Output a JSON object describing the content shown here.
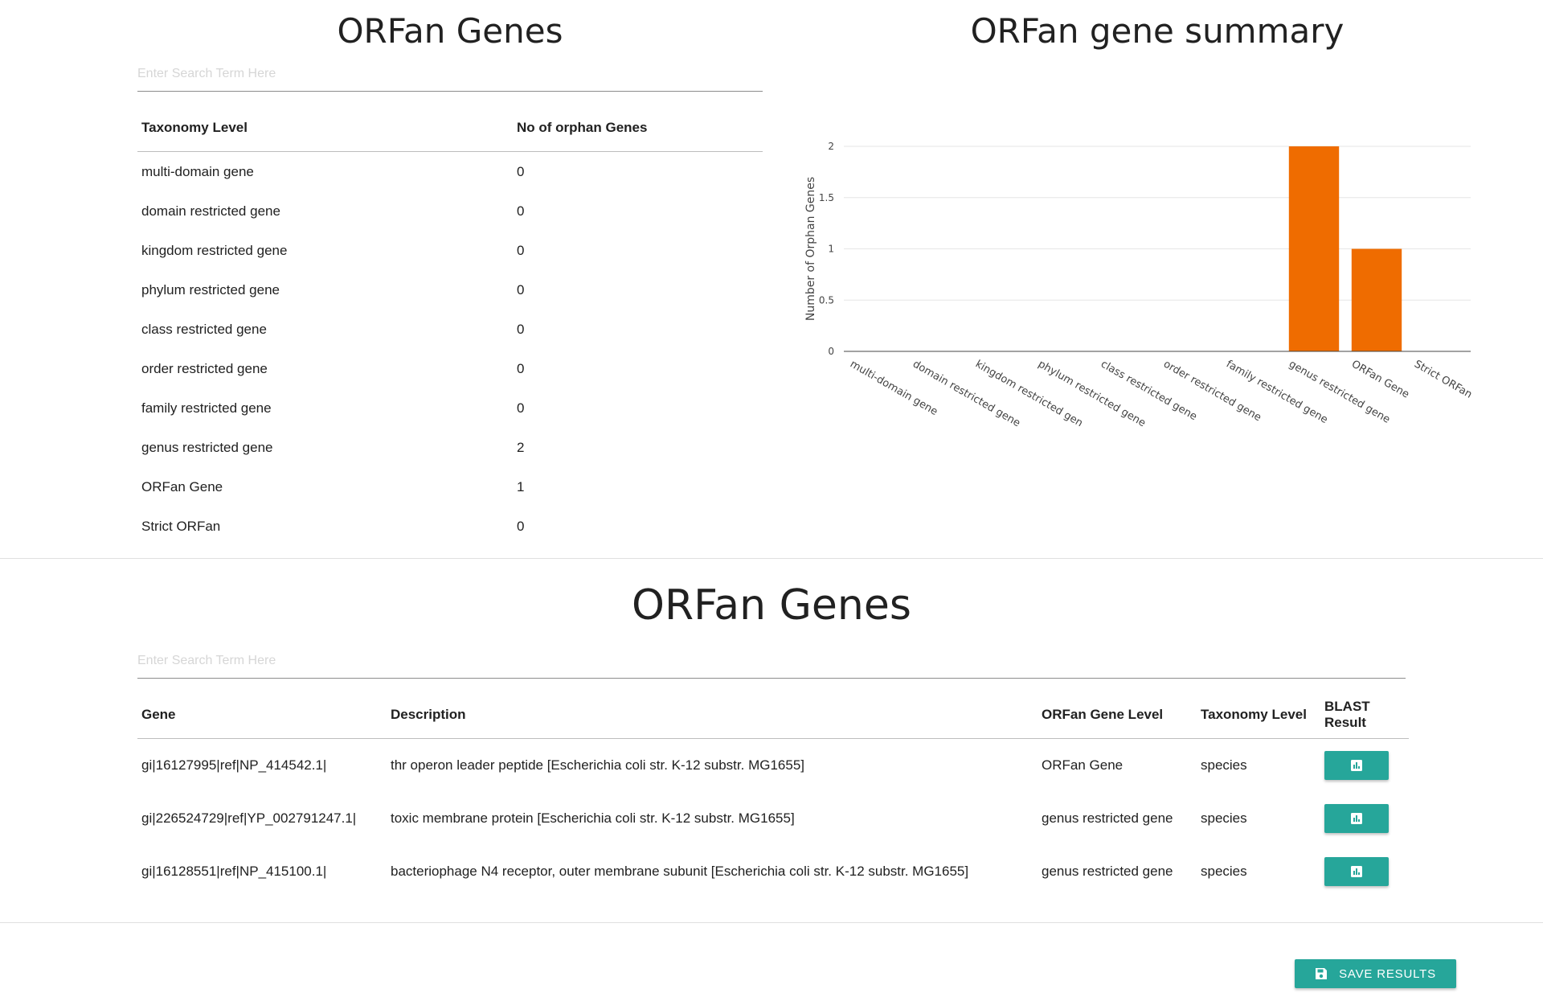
{
  "taxonomy_section": {
    "title": "ORFan Genes",
    "search_placeholder": "Enter Search Term Here",
    "columns": [
      "Taxonomy Level",
      "No of orphan Genes"
    ],
    "rows": [
      {
        "level": "multi-domain gene",
        "count": "0"
      },
      {
        "level": "domain restricted gene",
        "count": "0"
      },
      {
        "level": "kingdom restricted gene",
        "count": "0"
      },
      {
        "level": "phylum restricted gene",
        "count": "0"
      },
      {
        "level": "class restricted gene",
        "count": "0"
      },
      {
        "level": "order restricted gene",
        "count": "0"
      },
      {
        "level": "family restricted gene",
        "count": "0"
      },
      {
        "level": "genus restricted gene",
        "count": "2"
      },
      {
        "level": "ORFan Gene",
        "count": "1"
      },
      {
        "level": "Strict ORFan",
        "count": "0"
      }
    ]
  },
  "summary_section": {
    "title": "ORFan gene summary"
  },
  "chart_data": {
    "type": "bar",
    "title": "",
    "xlabel": "",
    "ylabel": "Number of Orphan Genes",
    "categories": [
      "multi-domain gene",
      "domain restricted gene",
      "kingdom restricted gene",
      "phylum restricted gene",
      "class restricted gene",
      "order restricted gene",
      "family restricted gene",
      "genus restricted gene",
      "ORFan Gene",
      "Strict ORFan"
    ],
    "category_display": [
      "multi-domain gene",
      "domain restricted gene",
      "kingdom restricted gen",
      "phylum restricted gene",
      "class restricted gene",
      "order restricted gene",
      "family restricted gene",
      "genus restricted gene",
      "ORFan Gene",
      "Strict ORFan"
    ],
    "values": [
      0,
      0,
      0,
      0,
      0,
      0,
      0,
      2,
      1,
      0
    ],
    "ylim": [
      0,
      2
    ],
    "yticks": [
      "0",
      "0.5",
      "1",
      "1.5",
      "2"
    ],
    "grid": true,
    "bar_color": "#ef6c00"
  },
  "genes_section": {
    "title": "ORFan Genes",
    "search_placeholder": "Enter Search Term Here",
    "columns": [
      "Gene",
      "Description",
      "ORFan Gene Level",
      "Taxonomy Level",
      "BLAST Result"
    ],
    "rows": [
      {
        "gene": "gi|16127995|ref|NP_414542.1|",
        "description": "thr operon leader peptide [Escherichia coli str. K-12 substr. MG1655]",
        "orfan_level": "ORFan Gene",
        "taxonomy_level": "species",
        "blast_icon": "bar-chart-icon"
      },
      {
        "gene": "gi|226524729|ref|YP_002791247.1|",
        "description": "toxic membrane protein [Escherichia coli str. K-12 substr. MG1655]",
        "orfan_level": "genus restricted gene",
        "taxonomy_level": "species",
        "blast_icon": "bar-chart-icon"
      },
      {
        "gene": "gi|16128551|ref|NP_415100.1|",
        "description": "bacteriophage N4 receptor, outer membrane subunit [Escherichia coli str. K-12 substr. MG1655]",
        "orfan_level": "genus restricted gene",
        "taxonomy_level": "species",
        "blast_icon": "bar-chart-icon"
      }
    ]
  },
  "save_button": {
    "label": "SAVE RESULTS",
    "icon": "save-icon"
  },
  "colors": {
    "accent": "#26a69a",
    "bar": "#ef6c00"
  }
}
